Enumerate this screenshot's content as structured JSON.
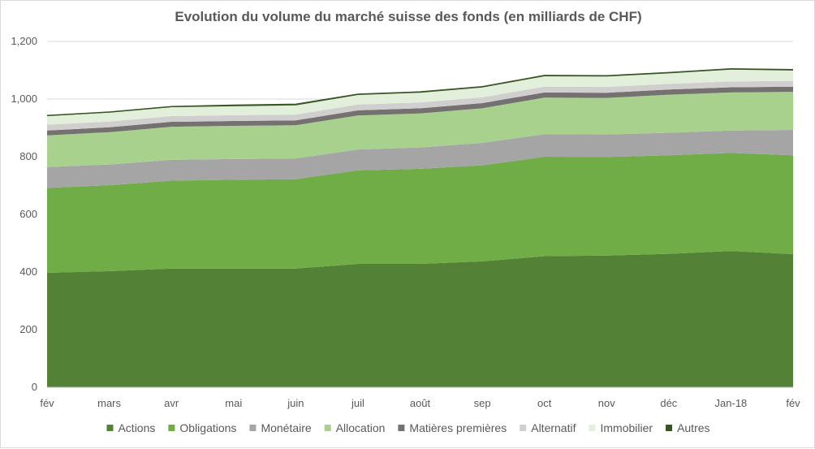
{
  "chart_data": {
    "type": "area",
    "stacked": true,
    "title": "Evolution du volume du marché suisse des fonds (en milliards de CHF)",
    "xlabel": "",
    "ylabel": "",
    "ylim": [
      0,
      1200
    ],
    "y_ticks": [
      0,
      200,
      400,
      600,
      800,
      1000,
      1200
    ],
    "y_tick_labels": [
      "0",
      "200",
      "400",
      "600",
      "800",
      "1,000",
      "1,200"
    ],
    "grid": true,
    "legend_position": "bottom",
    "categories": [
      "fév",
      "mars",
      "avr",
      "mai",
      "juin",
      "juil",
      "août",
      "sep",
      "oct",
      "nov",
      "déc",
      "Jan-18",
      "fév"
    ],
    "series": [
      {
        "name": "Actions",
        "color": "#538135",
        "values": [
          397,
          403,
          412,
          412,
          412,
          428,
          428,
          437,
          455,
          457,
          463,
          473,
          462
        ]
      },
      {
        "name": "Obligations",
        "color": "#70ad47",
        "values": [
          295,
          298,
          305,
          308,
          310,
          325,
          330,
          333,
          345,
          342,
          342,
          340,
          343
        ]
      },
      {
        "name": "Monétaire",
        "color": "#a5a5a5",
        "values": [
          72,
          72,
          72,
          72,
          72,
          72,
          74,
          78,
          78,
          78,
          78,
          78,
          88
        ]
      },
      {
        "name": "Allocation",
        "color": "#a9d18e",
        "values": [
          110,
          112,
          115,
          115,
          115,
          118,
          118,
          120,
          127,
          127,
          132,
          132,
          132
        ]
      },
      {
        "name": "Matières premières",
        "color": "#767171",
        "values": [
          17,
          17,
          17,
          17,
          17,
          18,
          18,
          18,
          18,
          18,
          18,
          18,
          18
        ]
      },
      {
        "name": "Alternatif",
        "color": "#d0cece",
        "values": [
          20,
          20,
          20,
          20,
          20,
          20,
          20,
          20,
          20,
          20,
          20,
          20,
          20
        ]
      },
      {
        "name": "Immobilier",
        "color": "#e2efda",
        "values": [
          30,
          31,
          31,
          31,
          32,
          33,
          34,
          34,
          36,
          36,
          36,
          41,
          36
        ]
      },
      {
        "name": "Autres",
        "color": "#375623",
        "values": [
          2,
          2,
          2,
          4,
          4,
          3,
          3,
          3,
          3,
          3,
          3,
          3,
          3
        ]
      }
    ]
  }
}
